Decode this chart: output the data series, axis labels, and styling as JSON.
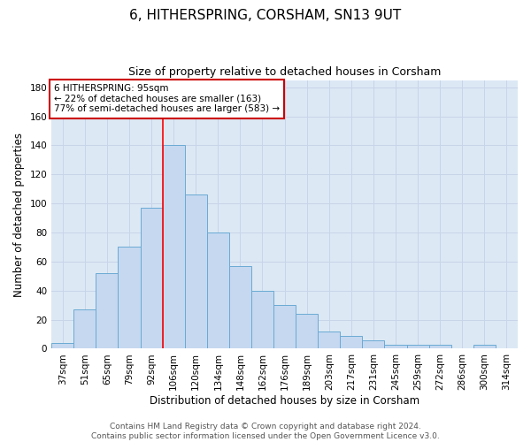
{
  "title1": "6, HITHERSPRING, CORSHAM, SN13 9UT",
  "title2": "Size of property relative to detached houses in Corsham",
  "xlabel": "Distribution of detached houses by size in Corsham",
  "ylabel": "Number of detached properties",
  "bar_labels": [
    "37sqm",
    "51sqm",
    "65sqm",
    "79sqm",
    "92sqm",
    "106sqm",
    "120sqm",
    "134sqm",
    "148sqm",
    "162sqm",
    "176sqm",
    "189sqm",
    "203sqm",
    "217sqm",
    "231sqm",
    "245sqm",
    "259sqm",
    "272sqm",
    "286sqm",
    "300sqm",
    "314sqm"
  ],
  "bar_values": [
    4,
    27,
    52,
    70,
    97,
    140,
    106,
    80,
    57,
    40,
    30,
    24,
    12,
    9,
    6,
    3,
    3,
    3,
    0,
    3,
    0
  ],
  "bar_color": "#c5d8f0",
  "bar_edge_color": "#6aaad4",
  "red_line_x": 4.5,
  "annotation_line1": "6 HITHERSPRING: 95sqm",
  "annotation_line2": "← 22% of detached houses are smaller (163)",
  "annotation_line3": "77% of semi-detached houses are larger (583) →",
  "annotation_box_color": "#ffffff",
  "annotation_box_edge": "#cc0000",
  "ylim": [
    0,
    185
  ],
  "yticks": [
    0,
    20,
    40,
    60,
    80,
    100,
    120,
    140,
    160,
    180
  ],
  "grid_color": "#c8d4e8",
  "bg_color": "#dce8f4",
  "footer": "Contains HM Land Registry data © Crown copyright and database right 2024.\nContains public sector information licensed under the Open Government Licence v3.0.",
  "title1_fontsize": 11,
  "title2_fontsize": 9,
  "xlabel_fontsize": 8.5,
  "ylabel_fontsize": 8.5,
  "tick_fontsize": 7.5,
  "annotation_fontsize": 7.5,
  "footer_fontsize": 6.5
}
